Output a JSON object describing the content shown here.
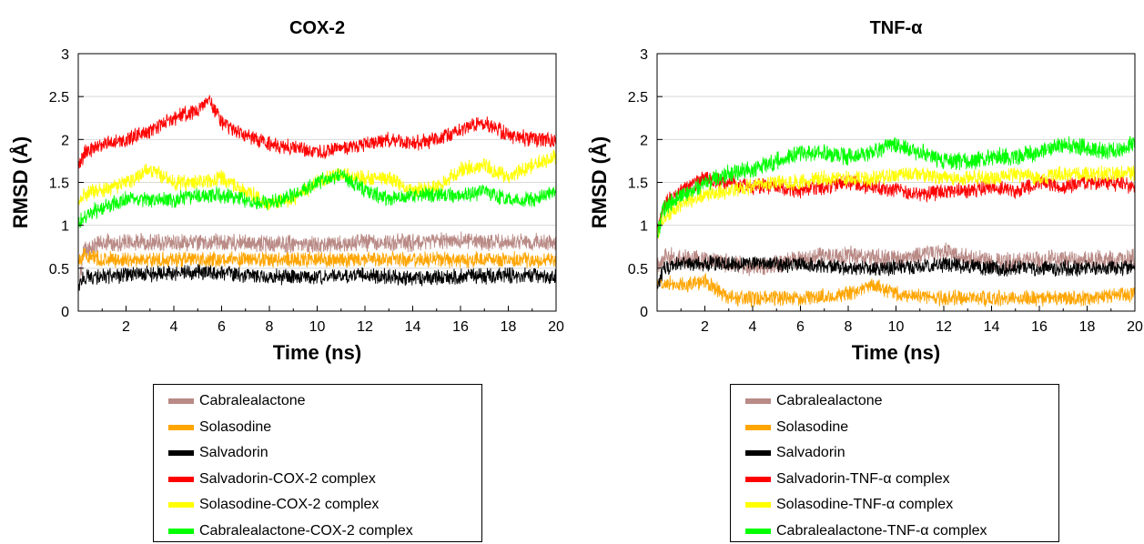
{
  "chart_data": [
    {
      "type": "line",
      "title": "COX-2",
      "xlabel": "Time (ns)",
      "ylabel": "RMSD (Å)",
      "xlim": [
        0,
        20
      ],
      "ylim": [
        0,
        3
      ],
      "xticks": [
        2,
        4,
        6,
        8,
        10,
        12,
        14,
        16,
        18,
        20
      ],
      "yticks": [
        0,
        0.5,
        1,
        1.5,
        2,
        2.5,
        3
      ],
      "grid": "horizontal",
      "legend_position": "below",
      "series": [
        {
          "name": "Cabralealactone",
          "color": "#B98A86",
          "noise": 0.09,
          "x": [
            0,
            0.2,
            1,
            2,
            4,
            6,
            8,
            10,
            12,
            14,
            16,
            18,
            20
          ],
          "y": [
            0.2,
            0.7,
            0.8,
            0.8,
            0.8,
            0.8,
            0.78,
            0.78,
            0.8,
            0.8,
            0.82,
            0.8,
            0.8
          ]
        },
        {
          "name": "Solasodine",
          "color": "#FFA500",
          "noise": 0.08,
          "x": [
            0,
            0.2,
            1,
            2,
            4,
            6,
            8,
            10,
            12,
            14,
            16,
            18,
            20
          ],
          "y": [
            0.6,
            0.65,
            0.6,
            0.6,
            0.6,
            0.6,
            0.6,
            0.6,
            0.6,
            0.6,
            0.6,
            0.6,
            0.6
          ]
        },
        {
          "name": "Salvadorin",
          "color": "#000000",
          "noise": 0.08,
          "x": [
            0,
            0.2,
            1,
            2,
            4,
            6,
            8,
            10,
            12,
            14,
            16,
            18,
            20
          ],
          "y": [
            0.25,
            0.4,
            0.4,
            0.42,
            0.45,
            0.45,
            0.4,
            0.4,
            0.42,
            0.38,
            0.4,
            0.42,
            0.4
          ]
        },
        {
          "name": "Salvadorin-COX-2 complex",
          "color": "#FF0000",
          "noise": 0.08,
          "x": [
            0,
            0.3,
            1,
            2,
            3,
            4,
            5,
            5.5,
            6,
            7,
            8,
            9,
            10,
            11,
            12,
            13,
            14,
            15,
            16,
            17,
            18,
            19,
            20
          ],
          "y": [
            1.7,
            1.85,
            1.95,
            2.0,
            2.1,
            2.25,
            2.35,
            2.45,
            2.2,
            2.05,
            1.95,
            1.9,
            1.85,
            1.9,
            1.95,
            2.0,
            1.95,
            2.0,
            2.1,
            2.2,
            2.05,
            2.0,
            2.0
          ]
        },
        {
          "name": "Solasodine-COX-2 complex",
          "color": "#FFFF00",
          "noise": 0.08,
          "x": [
            0,
            0.5,
            1,
            2,
            3,
            4,
            5,
            6,
            7,
            8,
            9,
            10,
            11,
            12,
            13,
            14,
            15,
            16,
            17,
            18,
            19,
            20
          ],
          "y": [
            1.3,
            1.4,
            1.4,
            1.5,
            1.65,
            1.5,
            1.5,
            1.55,
            1.4,
            1.25,
            1.3,
            1.5,
            1.6,
            1.55,
            1.55,
            1.4,
            1.45,
            1.65,
            1.7,
            1.55,
            1.7,
            1.8
          ]
        },
        {
          "name": "Cabralealactone-COX-2 complex",
          "color": "#00FF00",
          "noise": 0.08,
          "x": [
            0,
            0.5,
            1,
            2,
            3,
            4,
            5,
            6,
            7,
            8,
            9,
            10,
            11,
            12,
            13,
            14,
            15,
            16,
            17,
            18,
            19,
            20
          ],
          "y": [
            1.05,
            1.15,
            1.2,
            1.3,
            1.3,
            1.3,
            1.35,
            1.35,
            1.3,
            1.25,
            1.35,
            1.5,
            1.6,
            1.4,
            1.3,
            1.35,
            1.35,
            1.35,
            1.4,
            1.3,
            1.3,
            1.4
          ]
        }
      ]
    },
    {
      "type": "line",
      "title": "TNF-α",
      "xlabel": "Time (ns)",
      "ylabel": "RMSD (Å)",
      "xlim": [
        0,
        20
      ],
      "ylim": [
        0,
        3
      ],
      "xticks": [
        2,
        4,
        6,
        8,
        10,
        12,
        14,
        16,
        18,
        20
      ],
      "yticks": [
        0,
        0.5,
        1,
        1.5,
        2,
        2.5,
        3
      ],
      "grid": "horizontal",
      "legend_position": "below",
      "series": [
        {
          "name": "Cabralealactone",
          "color": "#B98A86",
          "noise": 0.1,
          "x": [
            0,
            0.3,
            1,
            2,
            4,
            6,
            8,
            10,
            12,
            14,
            16,
            18,
            20
          ],
          "y": [
            0.5,
            0.65,
            0.6,
            0.6,
            0.5,
            0.6,
            0.65,
            0.6,
            0.7,
            0.55,
            0.6,
            0.6,
            0.6
          ]
        },
        {
          "name": "Solasodine",
          "color": "#FFA500",
          "noise": 0.08,
          "x": [
            0,
            0.3,
            1,
            2,
            2.5,
            3,
            4,
            6,
            8,
            9,
            10,
            12,
            14,
            16,
            18,
            20
          ],
          "y": [
            0.3,
            0.35,
            0.3,
            0.35,
            0.25,
            0.15,
            0.15,
            0.15,
            0.2,
            0.3,
            0.2,
            0.15,
            0.15,
            0.15,
            0.15,
            0.2
          ]
        },
        {
          "name": "Salvadorin",
          "color": "#000000",
          "noise": 0.08,
          "x": [
            0,
            0.3,
            1,
            2,
            4,
            6,
            8,
            10,
            12,
            14,
            16,
            18,
            20
          ],
          "y": [
            0.3,
            0.5,
            0.55,
            0.55,
            0.55,
            0.55,
            0.5,
            0.5,
            0.55,
            0.5,
            0.5,
            0.5,
            0.5
          ]
        },
        {
          "name": "Salvadorin-TNF-α complex",
          "color": "#FF0000",
          "noise": 0.08,
          "x": [
            0,
            0.3,
            1,
            2,
            3,
            4,
            5,
            6,
            7,
            8,
            9,
            10,
            11,
            12,
            13,
            14,
            15,
            16,
            17,
            18,
            19,
            20
          ],
          "y": [
            0.9,
            1.25,
            1.4,
            1.55,
            1.5,
            1.45,
            1.45,
            1.4,
            1.45,
            1.5,
            1.45,
            1.4,
            1.35,
            1.4,
            1.4,
            1.45,
            1.4,
            1.5,
            1.45,
            1.5,
            1.5,
            1.45
          ]
        },
        {
          "name": "Solasodine-TNF-α complex",
          "color": "#FFFF00",
          "noise": 0.08,
          "x": [
            0,
            0.3,
            1,
            2,
            3,
            4,
            5,
            6,
            7,
            8,
            9,
            10,
            11,
            12,
            13,
            14,
            15,
            16,
            17,
            18,
            19,
            20
          ],
          "y": [
            0.9,
            1.1,
            1.25,
            1.35,
            1.4,
            1.45,
            1.5,
            1.5,
            1.55,
            1.55,
            1.55,
            1.6,
            1.6,
            1.55,
            1.55,
            1.55,
            1.6,
            1.55,
            1.6,
            1.6,
            1.6,
            1.6
          ]
        },
        {
          "name": "Cabralealactone-TNF-α complex",
          "color": "#00FF00",
          "noise": 0.09,
          "x": [
            0,
            0.3,
            1,
            2,
            3,
            4,
            5,
            6,
            7,
            8,
            9,
            10,
            11,
            12,
            13,
            14,
            15,
            16,
            17,
            18,
            19,
            20
          ],
          "y": [
            0.9,
            1.2,
            1.35,
            1.5,
            1.6,
            1.65,
            1.75,
            1.85,
            1.85,
            1.8,
            1.85,
            1.95,
            1.85,
            1.75,
            1.75,
            1.8,
            1.8,
            1.85,
            1.95,
            1.9,
            1.85,
            1.95
          ]
        }
      ]
    }
  ]
}
